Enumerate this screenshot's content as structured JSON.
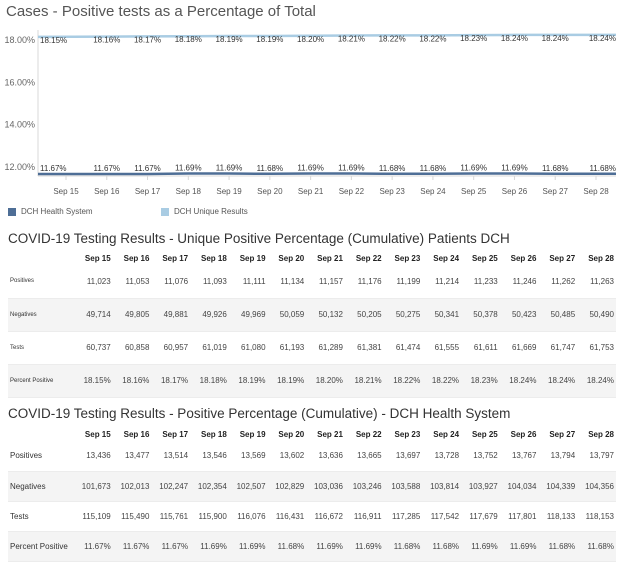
{
  "chart_data": {
    "type": "line",
    "title": "Cases - Positive tests as a Percentage of Total",
    "xlabel": "",
    "ylabel": "",
    "ylim": [
      12.0,
      18.0
    ],
    "y_ticks": [
      "12.00%",
      "14.00%",
      "16.00%",
      "18.00%"
    ],
    "y_tick_values": [
      12,
      14,
      16,
      18
    ],
    "grid": false,
    "categories": [
      "Sep 15",
      "Sep 16",
      "Sep 17",
      "Sep 18",
      "Sep 19",
      "Sep 20",
      "Sep 21",
      "Sep 22",
      "Sep 23",
      "Sep 24",
      "Sep 25",
      "Sep 26",
      "Sep 27",
      "Sep 28"
    ],
    "series": [
      {
        "name": "DCH Health System",
        "color": "#4e6e96",
        "values": [
          11.67,
          11.67,
          11.67,
          11.69,
          11.69,
          11.68,
          11.69,
          11.69,
          11.68,
          11.68,
          11.69,
          11.69,
          11.68,
          11.68
        ],
        "labels": [
          "11.67%",
          "11.67%",
          "11.67%",
          "11.69%",
          "11.69%",
          "11.68%",
          "11.69%",
          "11.69%",
          "11.68%",
          "11.68%",
          "11.69%",
          "11.69%",
          "11.68%",
          "11.68%"
        ]
      },
      {
        "name": "DCH Unique Results",
        "color": "#a9cce3",
        "values": [
          18.15,
          18.16,
          18.17,
          18.18,
          18.19,
          18.19,
          18.2,
          18.21,
          18.22,
          18.22,
          18.23,
          18.24,
          18.24,
          18.24
        ],
        "labels": [
          "18.15%",
          "18.16%",
          "18.17%",
          "18.18%",
          "18.19%",
          "18.19%",
          "18.20%",
          "18.21%",
          "18.22%",
          "18.22%",
          "18.23%",
          "18.24%",
          "18.24%",
          "18.24%"
        ]
      }
    ],
    "legend_position": "bottom-left"
  },
  "table1": {
    "title": "COVID-19 Testing Results - Unique Positive Percentage (Cumulative) Patients DCH",
    "columns": [
      "Sep 15",
      "Sep 16",
      "Sep 17",
      "Sep 18",
      "Sep 19",
      "Sep 20",
      "Sep 21",
      "Sep 22",
      "Sep 23",
      "Sep 24",
      "Sep 25",
      "Sep 26",
      "Sep 27",
      "Sep 28"
    ],
    "rows": [
      {
        "label": "Positives",
        "cells": [
          "11,023",
          "11,053",
          "11,076",
          "11,093",
          "11,111",
          "11,134",
          "11,157",
          "11,176",
          "11,199",
          "11,214",
          "11,233",
          "11,246",
          "11,262",
          "11,263"
        ]
      },
      {
        "label": "Negatives",
        "cells": [
          "49,714",
          "49,805",
          "49,881",
          "49,926",
          "49,969",
          "50,059",
          "50,132",
          "50,205",
          "50,275",
          "50,341",
          "50,378",
          "50,423",
          "50,485",
          "50,490"
        ]
      },
      {
        "label": "Tests",
        "cells": [
          "60,737",
          "60,858",
          "60,957",
          "61,019",
          "61,080",
          "61,193",
          "61,289",
          "61,381",
          "61,474",
          "61,555",
          "61,611",
          "61,669",
          "61,747",
          "61,753"
        ]
      },
      {
        "label": "Percent Positive",
        "cells": [
          "18.15%",
          "18.16%",
          "18.17%",
          "18.18%",
          "18.19%",
          "18.19%",
          "18.20%",
          "18.21%",
          "18.22%",
          "18.22%",
          "18.23%",
          "18.24%",
          "18.24%",
          "18.24%"
        ]
      }
    ]
  },
  "table2": {
    "title": "COVID-19 Testing Results - Positive Percentage (Cumulative) - DCH Health System",
    "columns": [
      "Sep 15",
      "Sep 16",
      "Sep 17",
      "Sep 18",
      "Sep 19",
      "Sep 20",
      "Sep 21",
      "Sep 22",
      "Sep 23",
      "Sep 24",
      "Sep 25",
      "Sep 26",
      "Sep 27",
      "Sep 28"
    ],
    "rows": [
      {
        "label": "Positives",
        "cells": [
          "13,436",
          "13,477",
          "13,514",
          "13,546",
          "13,569",
          "13,602",
          "13,636",
          "13,665",
          "13,697",
          "13,728",
          "13,752",
          "13,767",
          "13,794",
          "13,797"
        ]
      },
      {
        "label": "Negatives",
        "cells": [
          "101,673",
          "102,013",
          "102,247",
          "102,354",
          "102,507",
          "102,829",
          "103,036",
          "103,246",
          "103,588",
          "103,814",
          "103,927",
          "104,034",
          "104,339",
          "104,356"
        ]
      },
      {
        "label": "Tests",
        "cells": [
          "115,109",
          "115,490",
          "115,761",
          "115,900",
          "116,076",
          "116,431",
          "116,672",
          "116,911",
          "117,285",
          "117,542",
          "117,679",
          "117,801",
          "118,133",
          "118,153"
        ]
      },
      {
        "label": "Percent Positive",
        "cells": [
          "11.67%",
          "11.67%",
          "11.67%",
          "11.69%",
          "11.69%",
          "11.68%",
          "11.69%",
          "11.69%",
          "11.68%",
          "11.68%",
          "11.69%",
          "11.69%",
          "11.68%",
          "11.68%"
        ]
      }
    ]
  }
}
